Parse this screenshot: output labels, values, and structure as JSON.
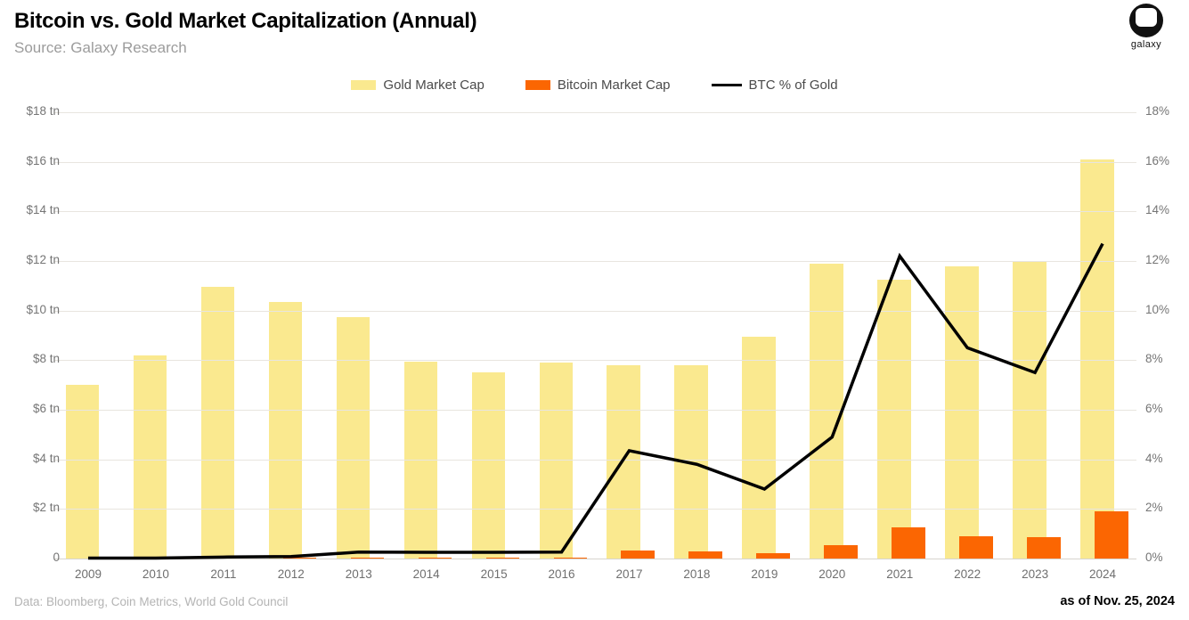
{
  "header": {
    "title": "Bitcoin vs. Gold Market Capitalization (Annual)",
    "subtitle": "Source: Galaxy Research",
    "logo_text": "galaxy"
  },
  "footer": {
    "sources": "Data: Bloomberg, Coin Metrics, World Gold Council",
    "as_of": "as of Nov. 25, 2024"
  },
  "colors": {
    "gold_bar": "#FAE98F",
    "bitcoin_bar": "#FB6602",
    "line": "#000000",
    "grid": "#e8e5df",
    "axis_text": "#757575",
    "subtitle_text": "#9c9c9c",
    "footer_text": "#b4b4b4"
  },
  "chart_data": {
    "type": "bar",
    "combo": "bar+line",
    "title": "Bitcoin vs. Gold Market Capitalization (Annual)",
    "categories": [
      "2009",
      "2010",
      "2011",
      "2012",
      "2013",
      "2014",
      "2015",
      "2016",
      "2017",
      "2018",
      "2019",
      "2020",
      "2021",
      "2022",
      "2023",
      "2024"
    ],
    "series": [
      {
        "name": "Gold Market Cap",
        "type": "bar",
        "axis": "left",
        "unit": "$ tn",
        "color": "#FAE98F",
        "values": [
          7.0,
          8.2,
          10.95,
          10.35,
          9.75,
          7.95,
          7.5,
          7.9,
          7.8,
          7.8,
          8.95,
          11.9,
          11.25,
          11.8,
          12.0,
          16.1
        ]
      },
      {
        "name": "Bitcoin Market Cap",
        "type": "bar",
        "axis": "left",
        "unit": "$ tn",
        "color": "#FB6602",
        "values": [
          0,
          0,
          0.002,
          0.005,
          0.02,
          0.01,
          0.01,
          0.02,
          0.32,
          0.29,
          0.23,
          0.53,
          1.25,
          0.9,
          0.85,
          1.9
        ]
      },
      {
        "name": "BTC % of Gold",
        "type": "line",
        "axis": "right",
        "unit": "%",
        "color": "#000000",
        "values": [
          0.02,
          0.02,
          0.06,
          0.08,
          0.26,
          0.25,
          0.25,
          0.26,
          4.35,
          3.8,
          2.8,
          4.9,
          12.2,
          8.5,
          7.5,
          12.7
        ]
      }
    ],
    "left_axis": {
      "range": [
        0,
        18
      ],
      "tick_values": [
        0,
        2,
        4,
        6,
        8,
        10,
        12,
        14,
        16,
        18
      ],
      "tick_labels": [
        "0",
        "$2 tn",
        "$4 tn",
        "$6 tn",
        "$8 tn",
        "$10 tn",
        "$12 tn",
        "$14 tn",
        "$16 tn",
        "$18 tn"
      ]
    },
    "right_axis": {
      "range": [
        0,
        18
      ],
      "tick_values": [
        0,
        2,
        4,
        6,
        8,
        10,
        12,
        14,
        16,
        18
      ],
      "tick_labels": [
        "0%",
        "2%",
        "4%",
        "6%",
        "8%",
        "10%",
        "12%",
        "14%",
        "16%",
        "18%"
      ]
    },
    "grid": true,
    "legend_position": "top-center"
  }
}
